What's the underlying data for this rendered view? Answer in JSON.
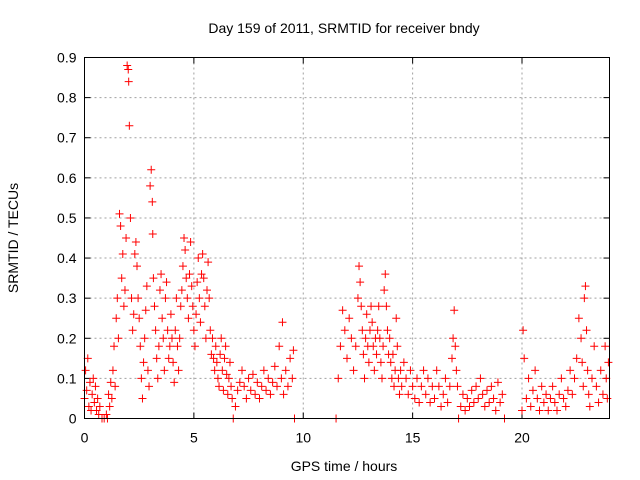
{
  "chart_data": {
    "type": "scatter",
    "title": "Day 159 of 2011, SRMTID for receiver bndy",
    "xlabel": "GPS time / hours",
    "ylabel": "SRMTID / TECUs",
    "xlim": [
      0,
      24
    ],
    "ylim": [
      0,
      0.9
    ],
    "xticks": [
      0,
      5,
      10,
      15,
      20
    ],
    "yticks": [
      0,
      0.1,
      0.2,
      0.3,
      0.4,
      0.5,
      0.6,
      0.7,
      0.8,
      0.9
    ],
    "grid": true,
    "marker": "+",
    "color": "#ff0000",
    "series": [
      {
        "name": "SRMTID",
        "points": [
          [
            0.0,
            0.05
          ],
          [
            0.05,
            0.12
          ],
          [
            0.1,
            0.07
          ],
          [
            0.15,
            0.15
          ],
          [
            0.2,
            0.03
          ],
          [
            0.25,
            0.09
          ],
          [
            0.3,
            0.02
          ],
          [
            0.35,
            0.06
          ],
          [
            0.4,
            0.1
          ],
          [
            0.45,
            0.04
          ],
          [
            0.5,
            0.08
          ],
          [
            0.55,
            0.02
          ],
          [
            0.6,
            0.05
          ],
          [
            0.65,
            0.01
          ],
          [
            0.7,
            0.03
          ],
          [
            0.8,
            0.0
          ],
          [
            0.9,
            0.0
          ],
          [
            1.0,
            0.01
          ],
          [
            1.05,
            0.0
          ],
          [
            1.1,
            0.06
          ],
          [
            1.15,
            0.03
          ],
          [
            1.2,
            0.09
          ],
          [
            1.25,
            0.05
          ],
          [
            1.3,
            0.12
          ],
          [
            1.35,
            0.18
          ],
          [
            1.4,
            0.08
          ],
          [
            1.45,
            0.25
          ],
          [
            1.5,
            0.3
          ],
          [
            1.55,
            0.2
          ],
          [
            1.6,
            0.51
          ],
          [
            1.65,
            0.48
          ],
          [
            1.7,
            0.35
          ],
          [
            1.75,
            0.41
          ],
          [
            1.8,
            0.28
          ],
          [
            1.85,
            0.32
          ],
          [
            1.9,
            0.45
          ],
          [
            1.95,
            0.88
          ],
          [
            2.0,
            0.87
          ],
          [
            2.02,
            0.84
          ],
          [
            2.05,
            0.73
          ],
          [
            2.1,
            0.5
          ],
          [
            2.15,
            0.3
          ],
          [
            2.2,
            0.22
          ],
          [
            2.25,
            0.26
          ],
          [
            2.3,
            0.41
          ],
          [
            2.35,
            0.44
          ],
          [
            2.4,
            0.38
          ],
          [
            2.45,
            0.3
          ],
          [
            2.5,
            0.25
          ],
          [
            2.55,
            0.18
          ],
          [
            2.6,
            0.1
          ],
          [
            2.65,
            0.05
          ],
          [
            2.7,
            0.14
          ],
          [
            2.75,
            0.2
          ],
          [
            2.8,
            0.27
          ],
          [
            2.85,
            0.33
          ],
          [
            2.9,
            0.12
          ],
          [
            2.95,
            0.08
          ],
          [
            3.0,
            0.58
          ],
          [
            3.05,
            0.62
          ],
          [
            3.1,
            0.54
          ],
          [
            3.12,
            0.46
          ],
          [
            3.15,
            0.35
          ],
          [
            3.2,
            0.28
          ],
          [
            3.25,
            0.22
          ],
          [
            3.3,
            0.15
          ],
          [
            3.35,
            0.1
          ],
          [
            3.4,
            0.18
          ],
          [
            3.45,
            0.32
          ],
          [
            3.5,
            0.36
          ],
          [
            3.55,
            0.25
          ],
          [
            3.6,
            0.2
          ],
          [
            3.65,
            0.12
          ],
          [
            3.7,
            0.3
          ],
          [
            3.75,
            0.34
          ],
          [
            3.8,
            0.22
          ],
          [
            3.85,
            0.15
          ],
          [
            3.9,
            0.18
          ],
          [
            3.95,
            0.26
          ],
          [
            4.0,
            0.2
          ],
          [
            4.05,
            0.14
          ],
          [
            4.1,
            0.09
          ],
          [
            4.15,
            0.22
          ],
          [
            4.2,
            0.3
          ],
          [
            4.25,
            0.18
          ],
          [
            4.3,
            0.12
          ],
          [
            4.35,
            0.2
          ],
          [
            4.4,
            0.28
          ],
          [
            4.45,
            0.32
          ],
          [
            4.5,
            0.38
          ],
          [
            4.55,
            0.45
          ],
          [
            4.6,
            0.42
          ],
          [
            4.65,
            0.35
          ],
          [
            4.7,
            0.3
          ],
          [
            4.75,
            0.25
          ],
          [
            4.8,
            0.36
          ],
          [
            4.85,
            0.44
          ],
          [
            4.9,
            0.33
          ],
          [
            4.95,
            0.28
          ],
          [
            5.0,
            0.22
          ],
          [
            5.05,
            0.18
          ],
          [
            5.1,
            0.26
          ],
          [
            5.15,
            0.34
          ],
          [
            5.2,
            0.4
          ],
          [
            5.25,
            0.3
          ],
          [
            5.3,
            0.24
          ],
          [
            5.35,
            0.36
          ],
          [
            5.4,
            0.41
          ],
          [
            5.45,
            0.35
          ],
          [
            5.5,
            0.28
          ],
          [
            5.55,
            0.2
          ],
          [
            5.6,
            0.32
          ],
          [
            5.65,
            0.39
          ],
          [
            5.7,
            0.3
          ],
          [
            5.75,
            0.22
          ],
          [
            5.8,
            0.16
          ],
          [
            5.85,
            0.2
          ],
          [
            5.9,
            0.15
          ],
          [
            5.95,
            0.12
          ],
          [
            6.0,
            0.18
          ],
          [
            6.05,
            0.14
          ],
          [
            6.1,
            0.1
          ],
          [
            6.15,
            0.08
          ],
          [
            6.2,
            0.16
          ],
          [
            6.25,
            0.2
          ],
          [
            6.3,
            0.12
          ],
          [
            6.35,
            0.07
          ],
          [
            6.4,
            0.15
          ],
          [
            6.45,
            0.18
          ],
          [
            6.5,
            0.11
          ],
          [
            6.55,
            0.06
          ],
          [
            6.6,
            0.1
          ],
          [
            6.65,
            0.14
          ],
          [
            6.7,
            0.08
          ],
          [
            6.75,
            0.05
          ],
          [
            6.8,
            0.0
          ],
          [
            6.9,
            0.03
          ],
          [
            7.0,
            0.07
          ],
          [
            7.1,
            0.09
          ],
          [
            7.2,
            0.12
          ],
          [
            7.3,
            0.08
          ],
          [
            7.4,
            0.05
          ],
          [
            7.5,
            0.1
          ],
          [
            7.6,
            0.07
          ],
          [
            7.7,
            0.11
          ],
          [
            7.8,
            0.06
          ],
          [
            7.9,
            0.09
          ],
          [
            8.0,
            0.05
          ],
          [
            8.1,
            0.08
          ],
          [
            8.2,
            0.12
          ],
          [
            8.3,
            0.07
          ],
          [
            8.4,
            0.1
          ],
          [
            8.5,
            0.06
          ],
          [
            8.6,
            0.09
          ],
          [
            8.7,
            0.13
          ],
          [
            8.8,
            0.08
          ],
          [
            8.9,
            0.18
          ],
          [
            9.0,
            0.1
          ],
          [
            9.05,
            0.24
          ],
          [
            9.1,
            0.06
          ],
          [
            9.2,
            0.12
          ],
          [
            9.3,
            0.08
          ],
          [
            9.4,
            0.15
          ],
          [
            9.5,
            0.1
          ],
          [
            9.55,
            0.17
          ],
          [
            9.6,
            0.0
          ],
          [
            11.5,
            0.0
          ],
          [
            11.6,
            0.1
          ],
          [
            11.7,
            0.18
          ],
          [
            11.8,
            0.27
          ],
          [
            11.9,
            0.22
          ],
          [
            12.0,
            0.15
          ],
          [
            12.1,
            0.25
          ],
          [
            12.2,
            0.2
          ],
          [
            12.3,
            0.12
          ],
          [
            12.4,
            0.18
          ],
          [
            12.5,
            0.3
          ],
          [
            12.55,
            0.38
          ],
          [
            12.6,
            0.34
          ],
          [
            12.65,
            0.28
          ],
          [
            12.7,
            0.22
          ],
          [
            12.75,
            0.16
          ],
          [
            12.8,
            0.1
          ],
          [
            12.85,
            0.2
          ],
          [
            12.9,
            0.26
          ],
          [
            12.95,
            0.18
          ],
          [
            13.0,
            0.14
          ],
          [
            13.05,
            0.22
          ],
          [
            13.1,
            0.28
          ],
          [
            13.15,
            0.24
          ],
          [
            13.2,
            0.18
          ],
          [
            13.25,
            0.12
          ],
          [
            13.3,
            0.2
          ],
          [
            13.35,
            0.16
          ],
          [
            13.4,
            0.22
          ],
          [
            13.45,
            0.28
          ],
          [
            13.5,
            0.2
          ],
          [
            13.55,
            0.14
          ],
          [
            13.6,
            0.1
          ],
          [
            13.65,
            0.18
          ],
          [
            13.7,
            0.32
          ],
          [
            13.75,
            0.36
          ],
          [
            13.8,
            0.28
          ],
          [
            13.85,
            0.22
          ],
          [
            13.9,
            0.16
          ],
          [
            13.95,
            0.2
          ],
          [
            14.0,
            0.14
          ],
          [
            14.05,
            0.1
          ],
          [
            14.1,
            0.16
          ],
          [
            14.15,
            0.08
          ],
          [
            14.2,
            0.12
          ],
          [
            14.25,
            0.25
          ],
          [
            14.3,
            0.18
          ],
          [
            14.35,
            0.1
          ],
          [
            14.4,
            0.06
          ],
          [
            14.45,
            0.12
          ],
          [
            14.5,
            0.08
          ],
          [
            14.6,
            0.14
          ],
          [
            14.7,
            0.1
          ],
          [
            14.8,
            0.06
          ],
          [
            14.9,
            0.12
          ],
          [
            15.0,
            0.08
          ],
          [
            15.1,
            0.05
          ],
          [
            15.2,
            0.1
          ],
          [
            15.3,
            0.04
          ],
          [
            15.4,
            0.08
          ],
          [
            15.5,
            0.12
          ],
          [
            15.6,
            0.06
          ],
          [
            15.7,
            0.1
          ],
          [
            15.8,
            0.04
          ],
          [
            15.9,
            0.08
          ],
          [
            16.0,
            0.05
          ],
          [
            16.1,
            0.12
          ],
          [
            16.2,
            0.08
          ],
          [
            16.3,
            0.03
          ],
          [
            16.4,
            0.06
          ],
          [
            16.5,
            0.1
          ],
          [
            16.6,
            0.04
          ],
          [
            16.7,
            0.08
          ],
          [
            16.8,
            0.15
          ],
          [
            16.85,
            0.2
          ],
          [
            16.9,
            0.27
          ],
          [
            16.95,
            0.18
          ],
          [
            17.0,
            0.12
          ],
          [
            17.05,
            0.08
          ],
          [
            17.1,
            0.0
          ],
          [
            17.2,
            0.03
          ],
          [
            17.3,
            0.06
          ],
          [
            17.4,
            0.02
          ],
          [
            17.5,
            0.05
          ],
          [
            17.6,
            0.03
          ],
          [
            17.7,
            0.07
          ],
          [
            17.8,
            0.04
          ],
          [
            17.9,
            0.08
          ],
          [
            18.0,
            0.05
          ],
          [
            18.1,
            0.1
          ],
          [
            18.2,
            0.06
          ],
          [
            18.3,
            0.03
          ],
          [
            18.4,
            0.07
          ],
          [
            18.5,
            0.04
          ],
          [
            18.6,
            0.08
          ],
          [
            18.7,
            0.05
          ],
          [
            18.8,
            0.02
          ],
          [
            18.9,
            0.09
          ],
          [
            19.0,
            0.04
          ],
          [
            19.1,
            0.06
          ],
          [
            19.2,
            0.0
          ],
          [
            20.0,
            0.02
          ],
          [
            20.05,
            0.22
          ],
          [
            20.1,
            0.15
          ],
          [
            20.2,
            0.05
          ],
          [
            20.3,
            0.1
          ],
          [
            20.4,
            0.03
          ],
          [
            20.5,
            0.07
          ],
          [
            20.6,
            0.12
          ],
          [
            20.7,
            0.05
          ],
          [
            20.8,
            0.02
          ],
          [
            20.9,
            0.08
          ],
          [
            21.0,
            0.04
          ],
          [
            21.1,
            0.06
          ],
          [
            21.2,
            0.02
          ],
          [
            21.3,
            0.05
          ],
          [
            21.4,
            0.08
          ],
          [
            21.5,
            0.04
          ],
          [
            21.6,
            0.02
          ],
          [
            21.7,
            0.06
          ],
          [
            21.8,
            0.1
          ],
          [
            21.9,
            0.05
          ],
          [
            22.0,
            0.03
          ],
          [
            22.1,
            0.07
          ],
          [
            22.2,
            0.12
          ],
          [
            22.3,
            0.06
          ],
          [
            22.4,
            0.1
          ],
          [
            22.5,
            0.15
          ],
          [
            22.6,
            0.25
          ],
          [
            22.7,
            0.2
          ],
          [
            22.75,
            0.14
          ],
          [
            22.8,
            0.08
          ],
          [
            22.85,
            0.3
          ],
          [
            22.9,
            0.33
          ],
          [
            22.95,
            0.22
          ],
          [
            23.0,
            0.12
          ],
          [
            23.05,
            0.06
          ],
          [
            23.1,
            0.03
          ],
          [
            23.2,
            0.1
          ],
          [
            23.3,
            0.18
          ],
          [
            23.4,
            0.08
          ],
          [
            23.5,
            0.04
          ],
          [
            23.6,
            0.12
          ],
          [
            23.7,
            0.06
          ],
          [
            23.8,
            0.18
          ],
          [
            23.85,
            0.1
          ],
          [
            23.9,
            0.05
          ],
          [
            23.95,
            0.14
          ]
        ]
      }
    ]
  }
}
